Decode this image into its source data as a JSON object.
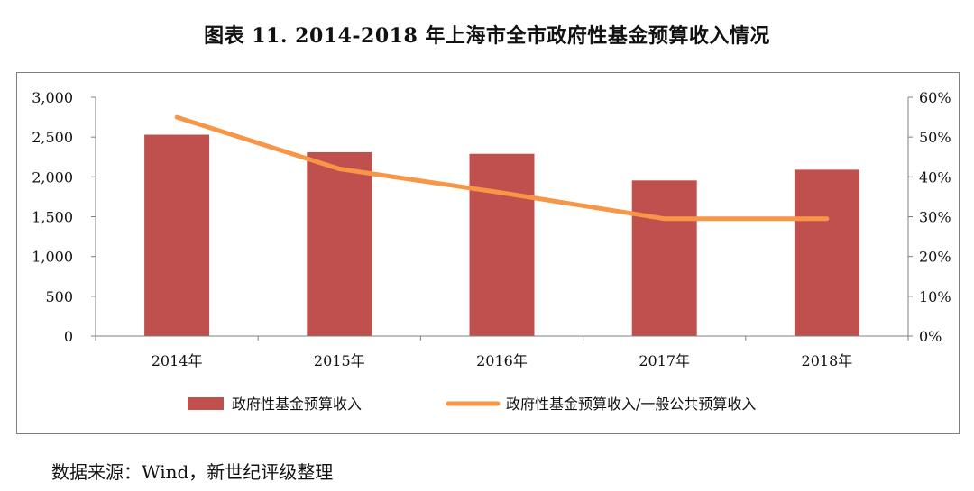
{
  "title": "图表 11. 2014-2018 年上海市全市政府性基金预算收入情况",
  "source": "数据来源：Wind，新世纪评级整理",
  "chart_data": {
    "type": "bar",
    "categories": [
      "2014年",
      "2015年",
      "2016年",
      "2017年",
      "2018年"
    ],
    "series": [
      {
        "name": "政府性基金预算收入",
        "type": "bar",
        "axis": "left",
        "values": [
          2530,
          2310,
          2290,
          1955,
          2090
        ],
        "color": "#C0504D"
      },
      {
        "name": "政府性基金预算收入/一般公共预算收入",
        "type": "line",
        "axis": "right",
        "values": [
          55.0,
          42.0,
          36.0,
          29.5,
          29.5
        ],
        "color": "#F79646"
      }
    ],
    "left_axis": {
      "ylim": [
        0,
        3000
      ],
      "ticks": [
        "0",
        "500",
        "1,000",
        "1,500",
        "2,000",
        "2,500",
        "3,000"
      ]
    },
    "right_axis": {
      "ylim": [
        0,
        60
      ],
      "ticks": [
        "0%",
        "10%",
        "20%",
        "30%",
        "40%",
        "50%",
        "60%"
      ]
    },
    "legend_position": "bottom",
    "grid": false
  }
}
